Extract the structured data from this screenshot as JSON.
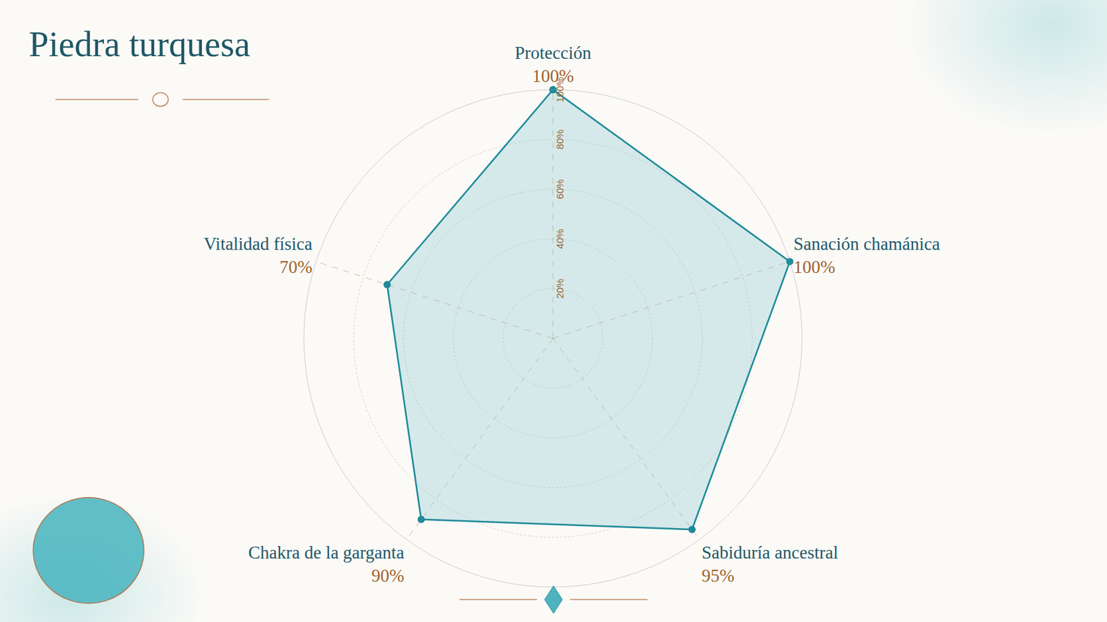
{
  "chart_data": {
    "type": "radar",
    "title": "Piedra turquesa",
    "categories": [
      "Protección",
      "Sanación chamánica",
      "Sabiduría ancestral",
      "Chakra de la garganta",
      "Vitalidad física"
    ],
    "values": [
      100,
      100,
      95,
      90,
      70
    ],
    "value_labels": [
      "100%",
      "100%",
      "95%",
      "90%",
      "70%"
    ],
    "data_labels": true,
    "color": "#1f8a9a",
    "ylim": [
      0,
      100
    ],
    "yticks": [
      {
        "value": 20,
        "label": "20%"
      },
      {
        "value": 40,
        "label": "40%"
      },
      {
        "value": 60,
        "label": "60%"
      },
      {
        "value": 80,
        "label": "80%"
      },
      {
        "value": 100,
        "label": "100%"
      }
    ],
    "grid": true
  }
}
